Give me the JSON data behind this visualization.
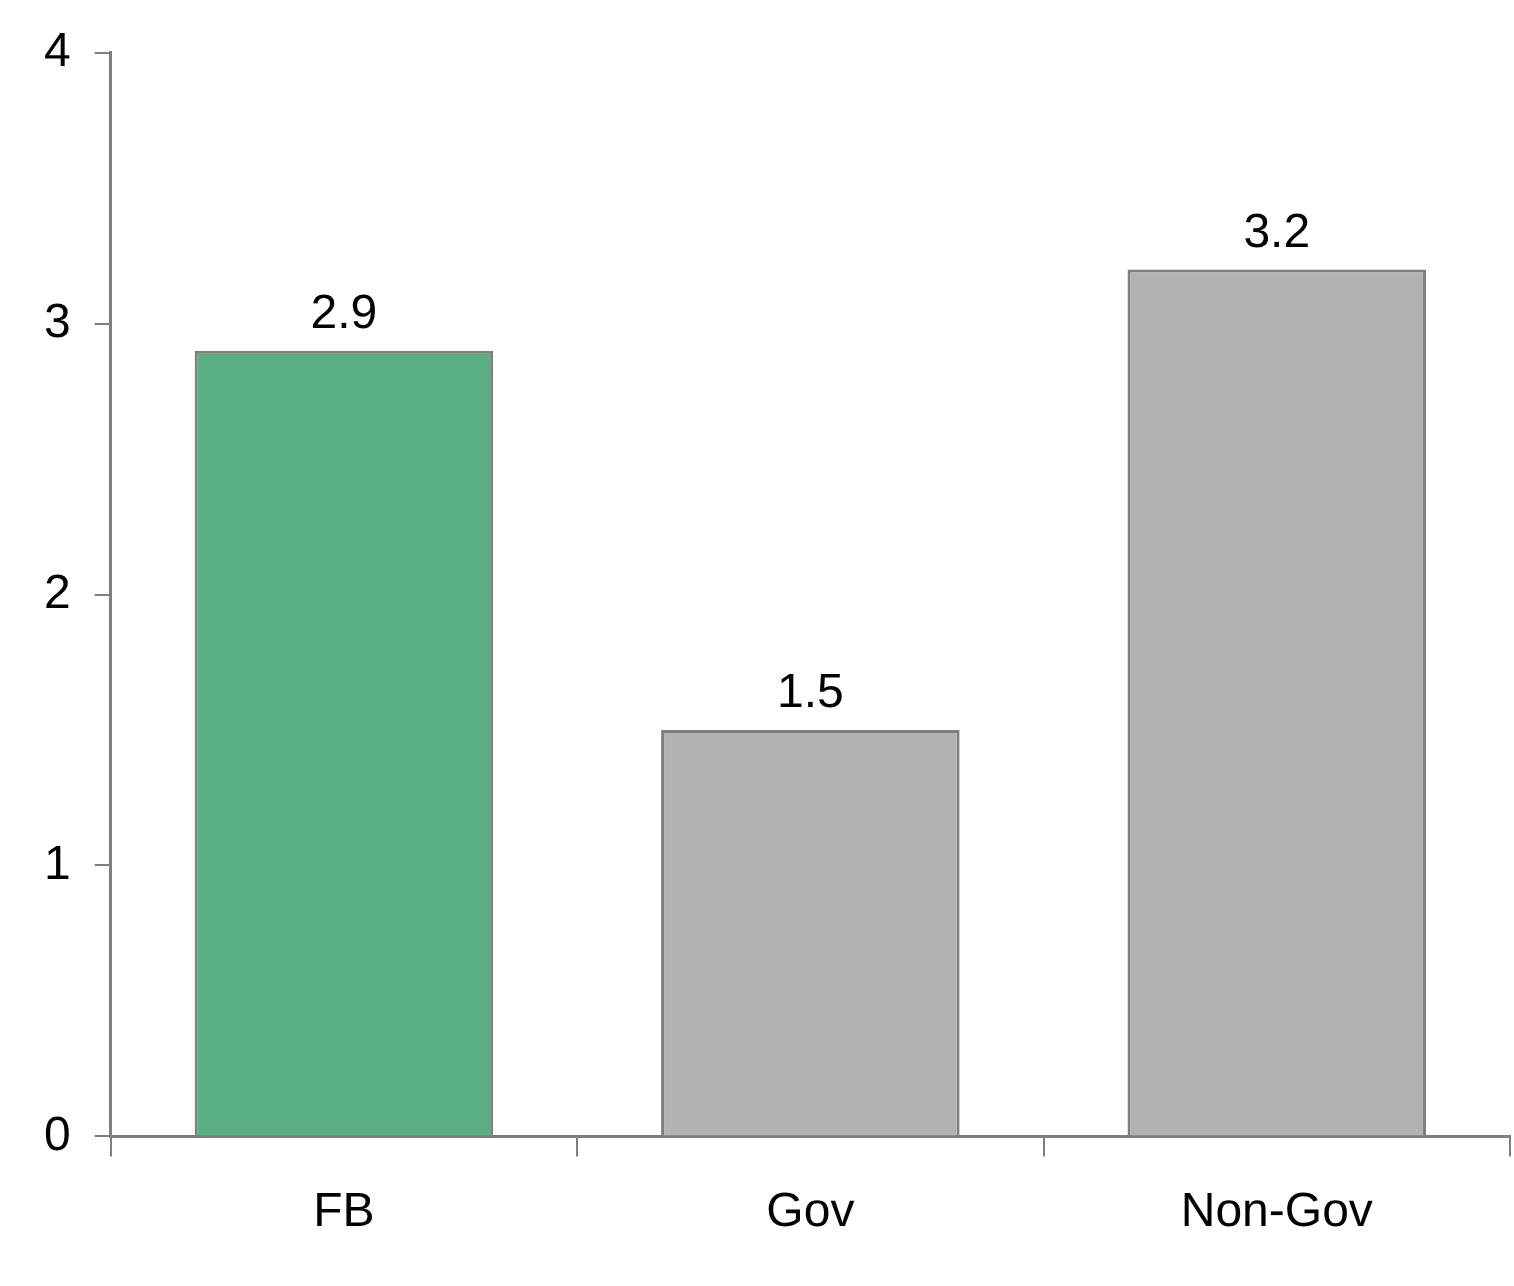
{
  "chart_data": {
    "type": "bar",
    "categories": [
      "FB",
      "Gov",
      "Non-Gov"
    ],
    "values": [
      2.9,
      1.5,
      3.2
    ],
    "colors": [
      "#5aaf82",
      "#b2b2b2",
      "#b2b2b2"
    ],
    "ylim": [
      0,
      4
    ],
    "yticks": [
      0,
      1,
      2,
      3,
      4
    ],
    "grid": false,
    "legend": false,
    "data_labels": true
  }
}
